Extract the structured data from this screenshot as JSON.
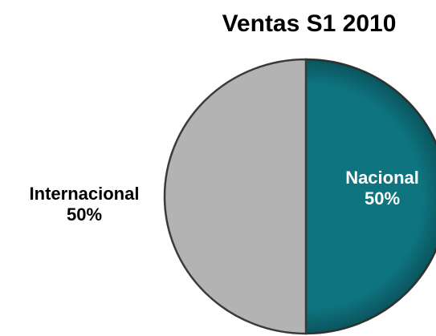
{
  "chart_data": {
    "type": "pie",
    "title": "Ventas S1 2010",
    "categories": [
      "Nacional",
      "Internacional"
    ],
    "values": [
      50,
      50
    ],
    "value_labels": [
      "50%",
      "50%"
    ],
    "colors": [
      "#0e7480",
      "#b3b3b3"
    ]
  }
}
